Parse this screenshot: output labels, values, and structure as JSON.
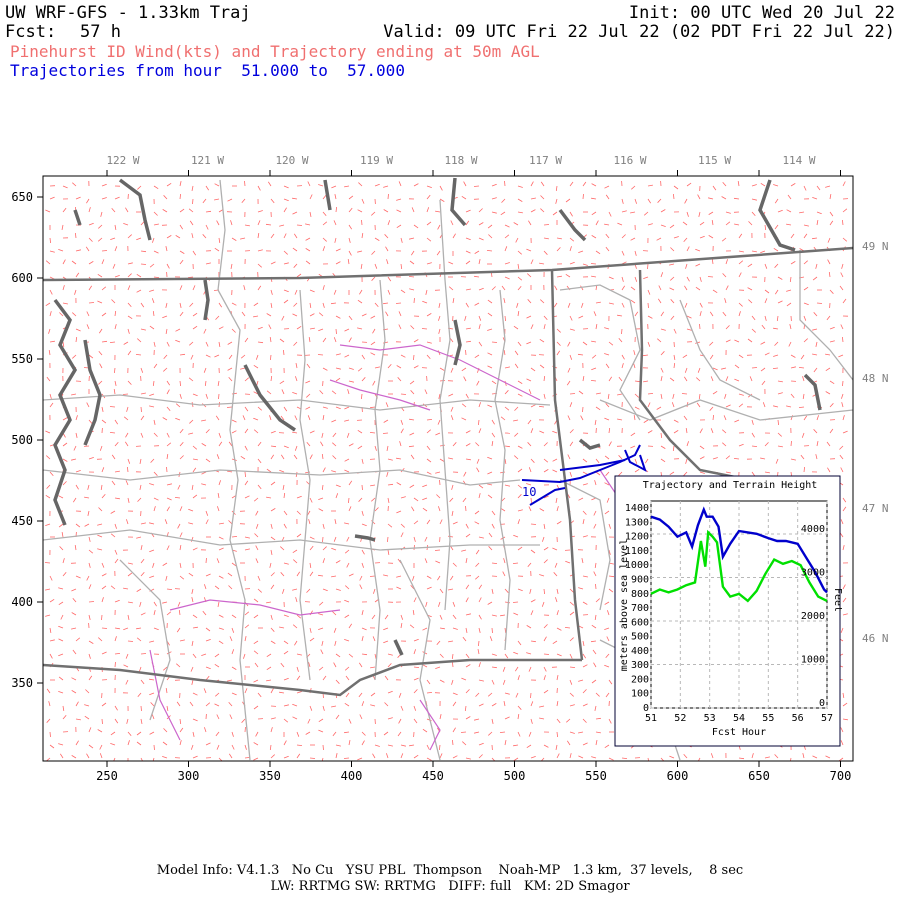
{
  "header": {
    "model": "UW WRF-GFS - 1.33km Traj",
    "init": "Init: 00 UTC Wed 20 Jul 22",
    "fcst_label": "Fcst:",
    "fcst_value": "57 h",
    "valid": "Valid: 09 UTC Fri 22 Jul 22 (02 PDT Fri 22 Jul 22)",
    "product": "Pinehurst ID Wind(kts) and Trajectory ending at 50m AGL",
    "trajectory_range": "Trajectories from hour  51.000 to  57.000"
  },
  "map": {
    "x_ticks": [
      "250",
      "300",
      "350",
      "400",
      "450",
      "500",
      "550",
      "600",
      "650",
      "700"
    ],
    "y_ticks": [
      "650",
      "600",
      "550",
      "500",
      "450",
      "400",
      "350"
    ],
    "lon_labels": [
      "122 W",
      "121 W",
      "120 W",
      "119 W",
      "118 W",
      "117 W",
      "116 W",
      "115 W",
      "114 W"
    ],
    "lat_labels": [
      "49 N",
      "48 N",
      "47 N",
      "46 N"
    ],
    "trajectory_start_label": "10",
    "colors": {
      "wind_barbs": "#ff6666",
      "trajectory": "#0000cc",
      "borders": "#707070",
      "counties": "#b0b0b0",
      "rivers": "#cc66cc"
    }
  },
  "inset": {
    "title": "Trajectory and Terrain Height",
    "xlabel": "Fcst Hour",
    "ylabel_left": "meters above sea level",
    "ylabel_right": "Feet",
    "x_ticks": [
      "51",
      "52",
      "53",
      "54",
      "55",
      "56",
      "57"
    ],
    "y_ticks_left": [
      "1400",
      "1300",
      "1200",
      "1100",
      "1000",
      "900",
      "800",
      "700",
      "600",
      "500",
      "400",
      "300",
      "200",
      "100",
      "0"
    ],
    "y_ticks_right": [
      "4000",
      "3000",
      "2000",
      "1000",
      "0"
    ]
  },
  "chart_data": {
    "type": "line",
    "title": "Trajectory and Terrain Height",
    "xlabel": "Fcst Hour",
    "ylabel": "meters above sea level",
    "xlim": [
      51,
      57
    ],
    "ylim": [
      0,
      1450
    ],
    "series": [
      {
        "color": "#0000cc",
        "x": [
          51,
          51.3,
          51.6,
          51.9,
          52.2,
          52.4,
          52.6,
          52.8,
          52.9,
          53.1,
          53.3,
          53.45,
          53.7,
          54.0,
          54.3,
          54.6,
          55.0,
          55.3,
          55.6,
          56.0,
          56.3,
          56.6,
          56.9,
          57.0
        ],
        "y": [
          1340,
          1320,
          1270,
          1200,
          1230,
          1130,
          1280,
          1390,
          1340,
          1340,
          1270,
          1060,
          1150,
          1240,
          1230,
          1220,
          1190,
          1170,
          1170,
          1150,
          1050,
          950,
          830,
          810
        ]
      },
      {
        "color": "#00e000",
        "x": [
          51,
          51.3,
          51.6,
          51.9,
          52.2,
          52.5,
          52.7,
          52.85,
          52.95,
          53.1,
          53.25,
          53.45,
          53.7,
          54.0,
          54.3,
          54.6,
          54.9,
          55.2,
          55.5,
          55.8,
          56.1,
          56.4,
          56.7,
          57.0
        ],
        "y": [
          800,
          830,
          810,
          830,
          860,
          880,
          1170,
          990,
          1230,
          1200,
          1160,
          850,
          780,
          800,
          750,
          820,
          940,
          1040,
          1010,
          1030,
          1000,
          880,
          780,
          750
        ]
      }
    ]
  },
  "footer": {
    "line1": "Model Info: V4.1.3   No Cu   YSU PBL  Thompson    Noah-MP   1.3 km,  37 levels,    8 sec",
    "line2": "LW: RRTMG SW: RRTMG   DIFF: full   KM: 2D Smagor"
  }
}
